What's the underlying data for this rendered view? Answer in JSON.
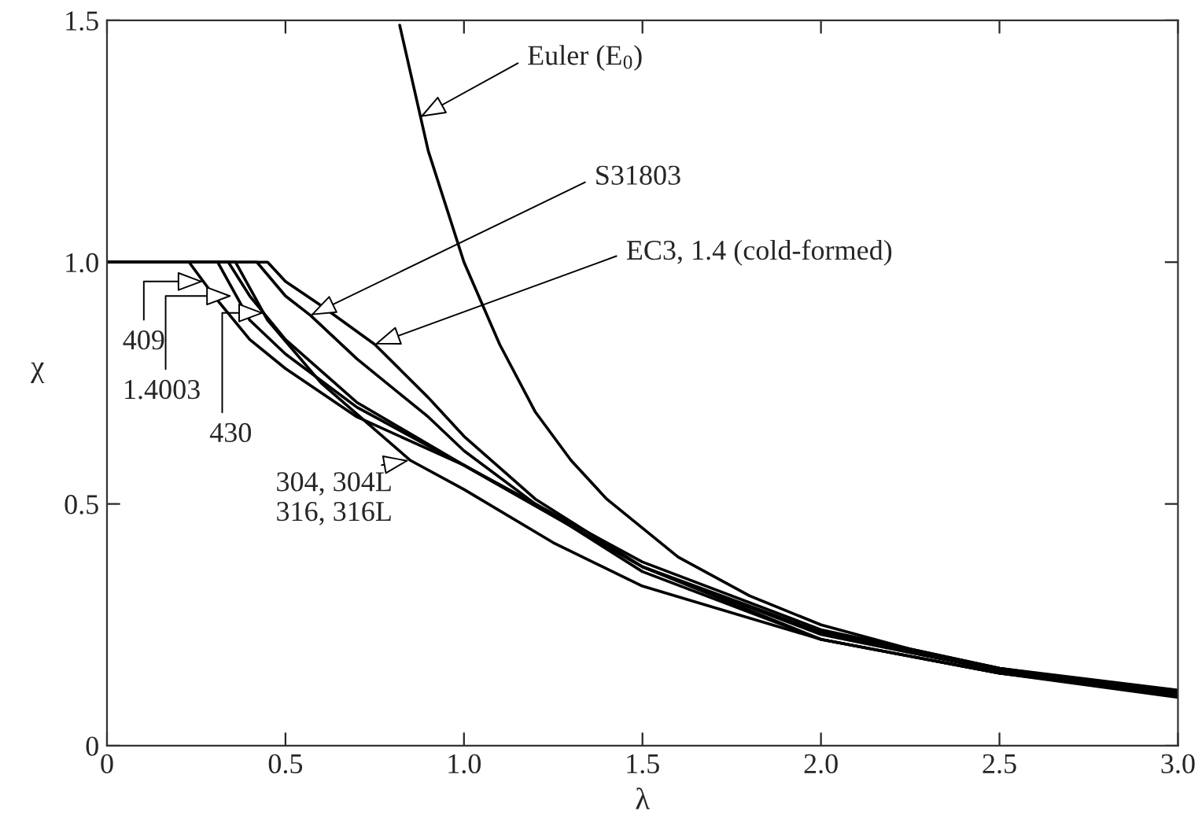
{
  "chart_data": {
    "type": "line",
    "xlabel": "λ",
    "ylabel": "χ",
    "xlim": [
      0,
      3.0
    ],
    "ylim": [
      0,
      1.5
    ],
    "xticks": [
      0,
      0.5,
      {
        "value": 1.0,
        "label": "1.0"
      },
      1.5,
      {
        "value": 2.0,
        "label": "2.0"
      },
      2.5,
      {
        "value": 3.0,
        "label": "3.0"
      }
    ],
    "yticks": [
      0,
      0.5,
      {
        "value": 1.0,
        "label": "1.0"
      },
      1.5
    ],
    "grid": false,
    "legend": false,
    "marker": "none",
    "line_style": "solid",
    "series": [
      {
        "color": "#000000",
        "x": [
          0.82,
          0.9,
          1.0,
          1.1,
          1.2,
          1.3,
          1.4,
          1.6,
          1.8,
          2.0,
          2.25,
          2.5,
          2.75,
          3.0
        ],
        "values": [
          1.49,
          1.23,
          1.0,
          0.83,
          0.69,
          0.59,
          0.51,
          0.39,
          0.31,
          0.25,
          0.2,
          0.16,
          0.13,
          0.11
        ]
      },
      {
        "color": "#000000",
        "x": [
          0,
          0.45,
          0.5,
          0.6,
          0.75,
          0.9,
          1.0,
          1.2,
          1.5,
          2.0,
          2.5,
          3.0
        ],
        "values": [
          1.0,
          1.0,
          0.96,
          0.91,
          0.83,
          0.72,
          0.64,
          0.51,
          0.37,
          0.22,
          0.15,
          0.11
        ]
      },
      {
        "color": "#000000",
        "x": [
          0,
          0.42,
          0.5,
          0.57,
          0.7,
          0.9,
          1.0,
          1.2,
          1.5,
          2.0,
          2.5,
          3.0
        ],
        "values": [
          1.0,
          1.0,
          0.93,
          0.89,
          0.8,
          0.68,
          0.61,
          0.5,
          0.36,
          0.22,
          0.15,
          0.105
        ]
      },
      {
        "color": "#000000",
        "x": [
          0,
          0.23,
          0.3,
          0.4,
          0.5,
          0.7,
          1.0,
          1.5,
          2.0,
          2.5,
          3.0
        ],
        "values": [
          1.0,
          1.0,
          0.93,
          0.84,
          0.78,
          0.68,
          0.58,
          0.38,
          0.24,
          0.16,
          0.115
        ]
      },
      {
        "color": "#000000",
        "x": [
          0,
          0.31,
          0.4,
          0.5,
          0.7,
          1.0,
          1.5,
          2.0,
          2.5,
          3.0
        ],
        "values": [
          1.0,
          1.0,
          0.88,
          0.81,
          0.7,
          0.58,
          0.37,
          0.235,
          0.16,
          0.11
        ]
      },
      {
        "color": "#000000",
        "x": [
          0,
          0.34,
          0.4,
          0.5,
          0.7,
          1.0,
          1.5,
          2.0,
          2.5,
          3.0
        ],
        "values": [
          1.0,
          1.0,
          0.93,
          0.84,
          0.71,
          0.58,
          0.37,
          0.23,
          0.155,
          0.11
        ]
      },
      {
        "color": "#000000",
        "x": [
          0,
          0.36,
          0.45,
          0.6,
          0.85,
          1.0,
          1.25,
          1.5,
          2.0,
          2.5,
          3.0
        ],
        "values": [
          1.0,
          1.0,
          0.88,
          0.75,
          0.59,
          0.53,
          0.42,
          0.33,
          0.22,
          0.15,
          0.1
        ]
      }
    ],
    "annotations": [
      {
        "text": "Euler (E$_{0}$)",
        "x": 0.877,
        "y": 1.3
      },
      {
        "text": "S31803",
        "x": 0.57,
        "y": 0.89
      },
      {
        "text": "EC3, 1.4 (cold-formed)",
        "x": 0.75,
        "y": 0.83
      },
      {
        "text": "409",
        "x": 0.27,
        "y": 0.96
      },
      {
        "text": "1.4003",
        "x": 0.35,
        "y": 0.93
      },
      {
        "text": "430",
        "x": 0.44,
        "y": 0.895
      },
      {
        "text": "304, 304L\n316, 316L",
        "x": 0.846,
        "y": 0.59
      }
    ]
  }
}
